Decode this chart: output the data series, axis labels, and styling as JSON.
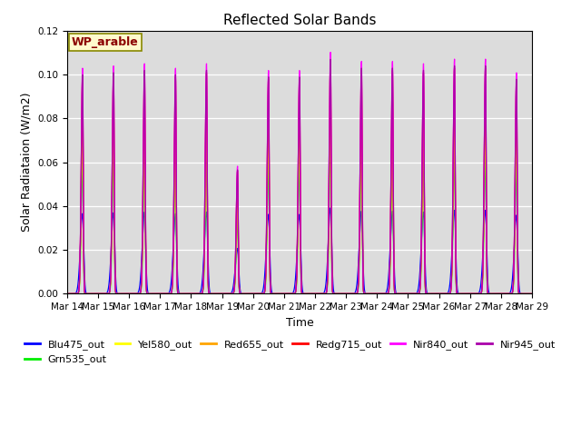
{
  "title": "Reflected Solar Bands",
  "xlabel": "Time",
  "ylabel": "Solar Radiataion (W/m2)",
  "ylim": [
    0,
    0.12
  ],
  "yticks": [
    0.0,
    0.02,
    0.04,
    0.06,
    0.08,
    0.1,
    0.12
  ],
  "xtick_labels": [
    "Mar 14",
    "Mar 15",
    "Mar 16",
    "Mar 17",
    "Mar 18",
    "Mar 19",
    "Mar 20",
    "Mar 21",
    "Mar 22",
    "Mar 23",
    "Mar 24",
    "Mar 25",
    "Mar 26",
    "Mar 27",
    "Mar 28",
    "Mar 29"
  ],
  "annotation_text": "WP_arable",
  "annotation_color": "#8B0000",
  "annotation_bg": "#FFFACD",
  "bg_color": "#DCDCDC",
  "series": [
    {
      "name": "Blu475_out",
      "color": "#0000FF",
      "peak_scale": 0.37
    },
    {
      "name": "Grn535_out",
      "color": "#00EE00",
      "peak_scale": 0.63
    },
    {
      "name": "Yel580_out",
      "color": "#FFFF00",
      "peak_scale": 0.75
    },
    {
      "name": "Red655_out",
      "color": "#FFA500",
      "peak_scale": 0.88
    },
    {
      "name": "Redg715_out",
      "color": "#FF0000",
      "peak_scale": 1.0
    },
    {
      "name": "Nir840_out",
      "color": "#FF00FF",
      "peak_scale": 1.04
    },
    {
      "name": "Nir945_out",
      "color": "#AA00AA",
      "peak_scale": 1.01
    }
  ],
  "day_peaks_nir840": [
    0.99,
    1.0,
    1.01,
    0.99,
    1.01,
    0.56,
    0.98,
    0.98,
    1.06,
    1.02,
    1.02,
    1.01,
    1.03,
    1.03,
    0.97
  ],
  "base_peak": 0.1,
  "sigma_narrow": 0.032,
  "sigma_wide_blu": 0.055
}
